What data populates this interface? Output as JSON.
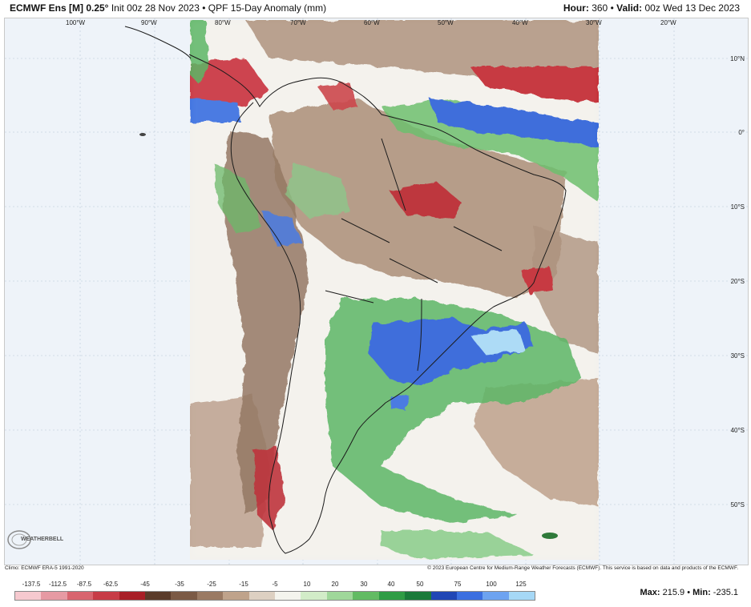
{
  "header": {
    "model": "ECMWF Ens [M] 0.25°",
    "init": "Init 00z 28 Nov 2023",
    "separator": "•",
    "product": "QPF 15-Day Anomaly (mm)",
    "hour_label": "Hour:",
    "hour_value": "360",
    "valid_label": "Valid:",
    "valid_value": "00z Wed 13 Dec 2023"
  },
  "map": {
    "lon_labels": [
      "100°W",
      "90°W",
      "80°W",
      "70°W",
      "60°W",
      "50°W",
      "40°W",
      "30°W",
      "20°W"
    ],
    "lat_labels": [
      "10°N",
      "0°",
      "10°S",
      "20°S",
      "30°S",
      "40°S",
      "50°S"
    ],
    "colors": {
      "ocean": "#eef3f9",
      "land_base": "#a88b74",
      "dry_red": "#b9262e",
      "wet_green": "#4fb05a",
      "wet_blue": "#2e62d8"
    }
  },
  "footer": {
    "climo": "Climo: ECMWF ERA-5 1991-2020",
    "copyright": "© 2023 European Centre for Medium-Range Weather Forecasts (ECMWF). This service is based on data and products of the ECMWF.",
    "logo_text": "WEATHERBELL"
  },
  "colorbar": {
    "labels": [
      "-137.5",
      "-112.5",
      "-87.5",
      "-62.5",
      "-45",
      "-35",
      "-25",
      "-15",
      "-5",
      "10",
      "20",
      "30",
      "40",
      "50",
      "75",
      "100",
      "125"
    ],
    "colors": [
      "#f6c9cf",
      "#e69aa3",
      "#d8656f",
      "#c73b46",
      "#a81f27",
      "#5a3b2a",
      "#7b5a45",
      "#9a7a63",
      "#bfa38b",
      "#ddd0c2",
      "#f4f4ee",
      "#d2ecc8",
      "#9fd79a",
      "#62bb63",
      "#2f9c45",
      "#1a7a3a",
      "#2046b5",
      "#3b6fe0",
      "#6da3f0",
      "#a6d8f6"
    ]
  },
  "stats": {
    "max_label": "Max:",
    "max_value": "215.9",
    "sep": "•",
    "min_label": "Min:",
    "min_value": "-235.1"
  }
}
